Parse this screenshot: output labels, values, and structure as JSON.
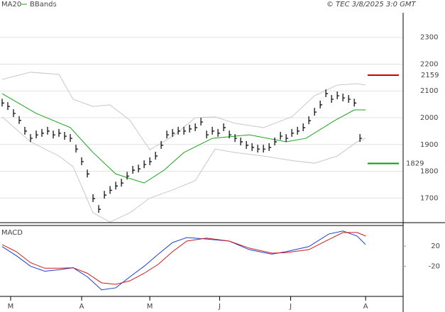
{
  "header": {
    "source": "© TEC 3/8/2025 3:0 GMT"
  },
  "chart_data": [
    {
      "type": "price-ticks",
      "x": [
        0,
        1,
        2,
        3,
        4,
        5,
        6,
        7,
        8,
        9,
        10,
        11,
        12,
        13,
        14,
        15,
        16,
        17,
        18,
        19,
        20,
        21,
        22,
        23,
        24,
        25,
        26,
        27,
        28,
        29,
        30,
        31,
        32,
        33,
        34,
        35,
        36,
        37,
        38,
        39,
        40,
        41,
        42,
        43,
        44,
        45,
        46,
        47,
        48,
        49,
        50,
        51,
        52,
        53,
        54,
        55,
        56,
        57,
        58,
        59,
        60,
        61,
        62,
        63
      ],
      "values": [
        2055,
        2042,
        2016,
        1990,
        1950,
        1923,
        1936,
        1942,
        1950,
        1936,
        1942,
        1931,
        1923,
        1883,
        1836,
        1790,
        1698,
        1658,
        1711,
        1729,
        1745,
        1756,
        1782,
        1804,
        1809,
        1825,
        1836,
        1857,
        1897,
        1936,
        1942,
        1950,
        1950,
        1958,
        1963,
        1984,
        1936,
        1950,
        1942,
        1963,
        1936,
        1923,
        1910,
        1897,
        1889,
        1883,
        1883,
        1889,
        1910,
        1931,
        1923,
        1942,
        1950,
        1963,
        1989,
        2021,
        2048,
        2090,
        2069,
        2082,
        2074,
        2069,
        2055,
        1923
      ],
      "color": "#000000",
      "series": [
        {
          "name": "MA20",
          "color": "#1aa51a",
          "x": [
            0,
            6,
            12,
            16,
            20,
            25,
            28.5,
            32,
            37,
            43.5,
            50,
            53.5,
            58.5,
            62,
            64
          ],
          "values": [
            2090,
            2016,
            1963,
            1870,
            1790,
            1756,
            1804,
            1870,
            1923,
            1936,
            1910,
            1923,
            1989,
            2029,
            2029
          ]
        },
        {
          "name": "BBands",
          "color": "#c8c8c8",
          "x": [
            0,
            5,
            10,
            12.5,
            16,
            19,
            22.5,
            26,
            30,
            34,
            37.5,
            41,
            46,
            51,
            55,
            59,
            62.5,
            64
          ],
          "values": [
            2143,
            2170,
            2162,
            2069,
            2042,
            2048,
            1990,
            1880,
            1930,
            2000,
            2003,
            1979,
            1963,
            2003,
            2082,
            2122,
            2127,
            2122
          ],
          "lower": [
            2003,
            1910,
            1857,
            1817,
            1645,
            1610,
            1645,
            1700,
            1730,
            1765,
            1883,
            1870,
            1857,
            1840,
            1830,
            1857,
            1910,
            1923
          ]
        }
      ],
      "annotations": [
        {
          "value": 2159,
          "label": "2159",
          "color": "#cc0000"
        },
        {
          "value": 1829,
          "label": "1829",
          "color": "#00a000"
        }
      ],
      "xlim": [
        0,
        70.6
      ],
      "ylim": [
        1608,
        2392
      ],
      "yticks": [
        1700,
        1800,
        1900,
        2000,
        2100,
        2200,
        2300
      ],
      "grid": true,
      "xticks": [
        {
          "value": 1.5,
          "label": "M"
        },
        {
          "value": 14,
          "label": "A"
        },
        {
          "value": 26,
          "label": "M"
        },
        {
          "value": 38.3,
          "label": "J"
        },
        {
          "value": 50.8,
          "label": "J"
        },
        {
          "value": 64,
          "label": "A"
        }
      ]
    },
    {
      "type": "line",
      "title": "MACD",
      "xlim": [
        0,
        70.6
      ],
      "ylim": [
        -80,
        61
      ],
      "yticks": [
        20,
        -20
      ],
      "series": [
        {
          "color": "#1a3fd0",
          "x": [
            0,
            2.5,
            5,
            7.5,
            10,
            12.5,
            15,
            17.5,
            20,
            22.5,
            25,
            27.5,
            30,
            32.5,
            36,
            40,
            43.5,
            47.5,
            50,
            54,
            57.5,
            60,
            62.5,
            64
          ],
          "values": [
            19,
            1,
            -20,
            -30,
            -27,
            -23,
            -41,
            -67,
            -63,
            -41,
            -20,
            4,
            27,
            37,
            34,
            30,
            13,
            4,
            9,
            19,
            44,
            50,
            40,
            23
          ]
        },
        {
          "color": "#d01a1a",
          "x": [
            0,
            2.5,
            5,
            7.5,
            10,
            12.5,
            15,
            17.5,
            20,
            22.5,
            25,
            27.5,
            30,
            32.5,
            36,
            40,
            43.5,
            47.5,
            50,
            54,
            57.5,
            60,
            62.5,
            64
          ],
          "values": [
            23,
            9,
            -13,
            -24,
            -24,
            -23,
            -34,
            -53,
            -56,
            -49,
            -34,
            -16,
            9,
            30,
            36,
            30,
            16,
            6,
            7,
            13,
            33,
            47,
            47,
            40
          ]
        }
      ]
    }
  ]
}
